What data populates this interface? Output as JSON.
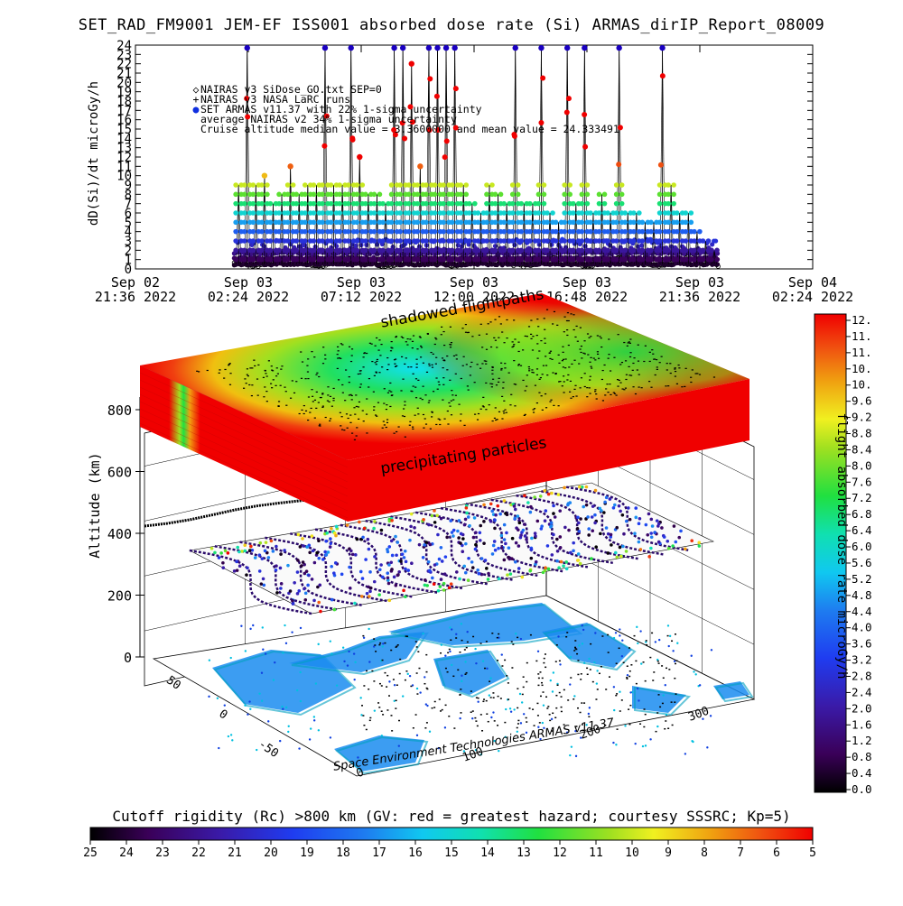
{
  "header": {
    "title": "SET_RAD_FM9001  JEM-EF ISS001 absorbed dose rate (Si) ARMAS_dirIP_Report_08009",
    "ylabel": "dD(Si)/dt microGy/h"
  },
  "legend": {
    "items": [
      {
        "marker": "◇",
        "text": "NAIRAS v3 SiDose_GO.txt SEP=0",
        "color": "#000000"
      },
      {
        "marker": "+",
        "text": "NAIRAS v3 NASA LaRC runs",
        "color": "#000000"
      },
      {
        "marker": "●",
        "text": "SET ARMAS v11.37 with 22% 1-sigma uncertainty",
        "color": "#1030e0"
      },
      {
        "marker": "",
        "text": "average NAIRAS v2 34% 1-sigma uncertainty",
        "color": "#000000"
      },
      {
        "marker": "",
        "text": "Cruise altitude median value = 3.3600000 and mean value = 24.333491",
        "color": "#000000"
      }
    ]
  },
  "annotations": {
    "shadowed": "shadowed flightpaths",
    "precip": "precipitating particles",
    "watermark": "Space Environment Technologies ARMAS v11.37",
    "altitude_label": "Altitude (km)",
    "altitude_ticks": [
      "0",
      "200",
      "400",
      "600",
      "800"
    ],
    "lat_ticks": [
      "-50",
      "0",
      "50"
    ],
    "lon_ticks": [
      "0",
      "100",
      "200",
      "300"
    ]
  },
  "colorbar_right": {
    "label": "flight absorbed dose rate microGy/h",
    "ticks": [
      "12.",
      "11.",
      "11.",
      "10.",
      "10.",
      "9.6",
      "9.2",
      "8.8",
      "8.4",
      "8.0",
      "7.6",
      "7.2",
      "6.8",
      "6.4",
      "6.0",
      "5.6",
      "5.2",
      "4.8",
      "4.4",
      "4.0",
      "3.6",
      "3.2",
      "2.8",
      "2.4",
      "2.0",
      "1.6",
      "1.2",
      "0.8",
      "0.4",
      "0.0"
    ]
  },
  "colorbar_bottom": {
    "title": "Cutoff rigidity (Rc) >800 km (GV: red = greatest hazard; courtesy SSSRC; Kp=5)",
    "ticks": [
      "25",
      "24",
      "23",
      "22",
      "21",
      "20",
      "19",
      "18",
      "17",
      "16",
      "15",
      "14",
      "13",
      "12",
      "11",
      "10",
      "9",
      "8",
      "7",
      "6",
      "5"
    ]
  },
  "colors": {
    "background": "#ffffff",
    "axis": "#000000"
  },
  "chart_data": {
    "type": "scatter",
    "title": "SET_RAD_FM9001  JEM-EF ISS001 absorbed dose rate (Si) ARMAS_dirIP_Report_08009",
    "ylabel": "dD(Si)/dt microGy/h",
    "ylim": [
      0,
      24
    ],
    "yticks": [
      "0",
      "1",
      "2",
      "3",
      "4",
      "5",
      "6",
      "7",
      "8",
      "9",
      "10",
      "11",
      "12",
      "13",
      "14",
      "15",
      "16",
      "17",
      "18",
      "19",
      "20",
      "21",
      "22",
      "23",
      "24"
    ],
    "xticks": [
      {
        "line1": "Sep 02",
        "line2": "21:36 2022"
      },
      {
        "line1": "Sep 03",
        "line2": "02:24 2022"
      },
      {
        "line1": "Sep 03",
        "line2": "07:12 2022"
      },
      {
        "line1": "Sep 03",
        "line2": "12:00 2022"
      },
      {
        "line1": "Sep 03",
        "line2": "16:48 2022"
      },
      {
        "line1": "Sep 03",
        "line2": "21:36 2022"
      },
      {
        "line1": "Sep 04",
        "line2": "02:24 2022"
      }
    ],
    "xlim_hours": [
      0,
      28.8
    ],
    "data_range_hours": [
      4.2,
      24.8
    ],
    "spike_peaks": [
      9,
      24,
      9,
      10,
      7,
      8,
      11,
      8,
      9,
      9,
      24,
      9,
      9,
      24,
      12,
      8,
      8,
      7,
      24,
      24,
      22,
      11,
      24,
      24,
      24,
      24,
      9,
      7,
      6,
      9,
      8,
      7,
      24,
      7,
      7,
      24,
      6,
      5,
      24,
      7,
      24,
      6,
      8,
      6,
      24,
      6,
      6,
      5,
      5,
      24,
      9,
      6,
      6,
      4,
      3,
      2
    ],
    "series": [
      {
        "name": "NAIRAS v3 SiDose_GO.txt SEP=0",
        "marker": "diamond"
      },
      {
        "name": "NAIRAS v3 NASA LaRC runs",
        "marker": "plus"
      },
      {
        "name": "SET ARMAS v11.37 with 22% 1-sigma uncertainty",
        "marker": "dot"
      }
    ],
    "median": 3.36,
    "mean": 24.333491
  }
}
